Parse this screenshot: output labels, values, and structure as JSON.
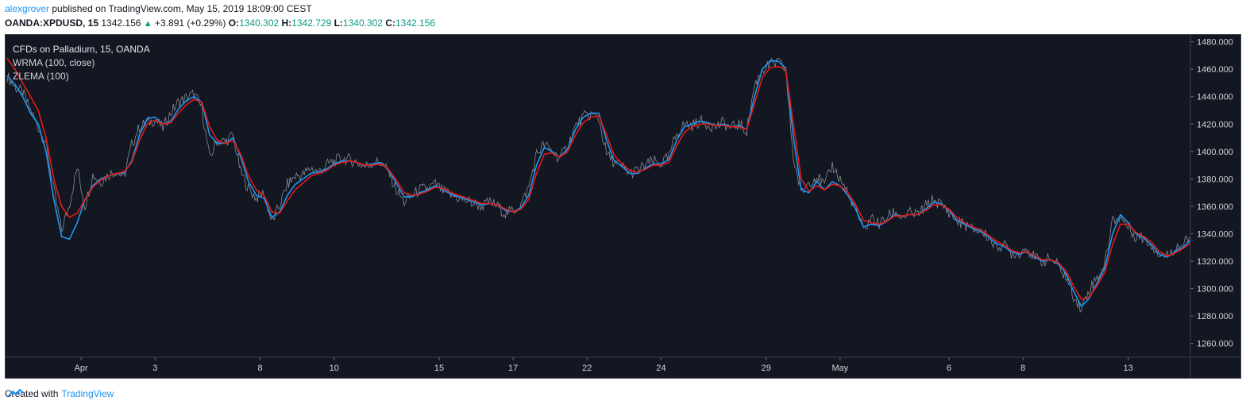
{
  "header": {
    "author": "alexgrover",
    "published_text": "published on TradingView.com, May 15, 2019 18:09:00 CEST",
    "symbol": "OANDA:XPDUSD, 15",
    "last_price": "1342.156",
    "change": "+3.891 (+0.29%)",
    "ohlc": [
      {
        "label": "O:",
        "value": "1340.302"
      },
      {
        "label": "H:",
        "value": "1342.729"
      },
      {
        "label": "L:",
        "value": "1340.302"
      },
      {
        "label": "C:",
        "value": "1342.156"
      }
    ]
  },
  "legend": {
    "symbol_line": "CFDs on Palladium, 15, OANDA",
    "indicator1": "WRMA (100, close)",
    "indicator2": "ZLEMA (100)"
  },
  "footer": {
    "created_with": "Created with",
    "brand": "TradingView"
  },
  "colors": {
    "background": "#131722",
    "price": "#9598a1",
    "wrma": "#e41b17",
    "zlema": "#2196f3",
    "grid_text": "#d1d4dc"
  },
  "chart_data": {
    "type": "line",
    "ylim": [
      1250,
      1485
    ],
    "yticks": [
      "1260.000",
      "1280.000",
      "1300.000",
      "1320.000",
      "1340.000",
      "1360.000",
      "1380.000",
      "1400.000",
      "1420.000",
      "1440.000",
      "1460.000",
      "1480.000"
    ],
    "x_tick_labels": [
      "Apr",
      "3",
      "8",
      "10",
      "15",
      "17",
      "22",
      "24",
      "29",
      "May",
      "6",
      "8",
      "13"
    ],
    "x_tick_index": [
      9.5,
      19,
      32.5,
      42,
      55.5,
      65,
      74.5,
      84,
      97.5,
      107,
      121,
      130.5,
      144
    ],
    "price": [
      1455,
      1447,
      1443,
      1430,
      1418,
      1405,
      1372,
      1342,
      1362,
      1388,
      1360,
      1383,
      1378,
      1383,
      1386,
      1381,
      1405,
      1418,
      1421,
      1423,
      1417,
      1428,
      1436,
      1439,
      1442,
      1432,
      1395,
      1408,
      1407,
      1412,
      1385,
      1373,
      1366,
      1370,
      1348,
      1361,
      1376,
      1382,
      1383,
      1388,
      1385,
      1390,
      1393,
      1395,
      1394,
      1392,
      1389,
      1392,
      1392,
      1385,
      1372,
      1363,
      1368,
      1372,
      1373,
      1376,
      1371,
      1368,
      1366,
      1364,
      1362,
      1360,
      1363,
      1360,
      1355,
      1357,
      1361,
      1374,
      1398,
      1405,
      1400,
      1395,
      1404,
      1418,
      1425,
      1427,
      1424,
      1398,
      1392,
      1389,
      1384,
      1386,
      1390,
      1393,
      1391,
      1396,
      1413,
      1420,
      1419,
      1422,
      1420,
      1418,
      1421,
      1417,
      1420,
      1415,
      1448,
      1460,
      1463,
      1465,
      1460,
      1395,
      1370,
      1378,
      1382,
      1375,
      1390,
      1380,
      1370,
      1358,
      1342,
      1352,
      1347,
      1352,
      1356,
      1352,
      1355,
      1354,
      1360,
      1365,
      1361,
      1356,
      1349,
      1347,
      1343,
      1342,
      1338,
      1331,
      1332,
      1326,
      1326,
      1330,
      1322,
      1320,
      1322,
      1317,
      1308,
      1295,
      1285,
      1300,
      1308,
      1318,
      1350,
      1352,
      1345,
      1338,
      1337,
      1332,
      1325,
      1324,
      1330,
      1332,
      1337
    ],
    "zlema": [
      1455,
      1449,
      1440,
      1428,
      1420,
      1400,
      1365,
      1338,
      1336,
      1348,
      1365,
      1375,
      1380,
      1382,
      1384,
      1384,
      1393,
      1412,
      1424,
      1425,
      1420,
      1422,
      1431,
      1437,
      1440,
      1436,
      1412,
      1406,
      1406,
      1410,
      1396,
      1378,
      1368,
      1366,
      1352,
      1356,
      1368,
      1376,
      1380,
      1384,
      1385,
      1387,
      1391,
      1393,
      1393,
      1392,
      1390,
      1391,
      1392,
      1386,
      1377,
      1367,
      1367,
      1370,
      1372,
      1375,
      1372,
      1369,
      1367,
      1365,
      1363,
      1361,
      1362,
      1361,
      1357,
      1356,
      1359,
      1368,
      1390,
      1403,
      1400,
      1396,
      1402,
      1416,
      1425,
      1428,
      1428,
      1408,
      1393,
      1389,
      1384,
      1384,
      1388,
      1391,
      1391,
      1394,
      1408,
      1418,
      1420,
      1422,
      1421,
      1419,
      1420,
      1418,
      1419,
      1416,
      1440,
      1460,
      1466,
      1466,
      1461,
      1410,
      1372,
      1370,
      1378,
      1372,
      1378,
      1375,
      1368,
      1358,
      1345,
      1347,
      1346,
      1349,
      1354,
      1353,
      1354,
      1354,
      1358,
      1363,
      1362,
      1357,
      1350,
      1347,
      1344,
      1342,
      1338,
      1333,
      1331,
      1327,
      1325,
      1327,
      1323,
      1320,
      1321,
      1318,
      1311,
      1298,
      1287,
      1293,
      1304,
      1315,
      1340,
      1354,
      1348,
      1340,
      1337,
      1332,
      1325,
      1323,
      1327,
      1330,
      1335
    ],
    "wrma": [
      1468,
      1460,
      1450,
      1440,
      1430,
      1410,
      1380,
      1360,
      1352,
      1355,
      1365,
      1374,
      1379,
      1382,
      1384,
      1385,
      1392,
      1408,
      1420,
      1423,
      1420,
      1421,
      1428,
      1434,
      1438,
      1436,
      1418,
      1408,
      1406,
      1408,
      1398,
      1382,
      1372,
      1368,
      1356,
      1355,
      1364,
      1372,
      1377,
      1382,
      1384,
      1386,
      1390,
      1392,
      1393,
      1392,
      1390,
      1390,
      1391,
      1387,
      1379,
      1370,
      1368,
      1369,
      1371,
      1374,
      1373,
      1370,
      1368,
      1366,
      1364,
      1362,
      1362,
      1361,
      1358,
      1356,
      1358,
      1365,
      1384,
      1398,
      1399,
      1396,
      1400,
      1412,
      1421,
      1425,
      1426,
      1412,
      1397,
      1391,
      1386,
      1385,
      1387,
      1390,
      1390,
      1392,
      1404,
      1414,
      1418,
      1420,
      1420,
      1419,
      1419,
      1418,
      1418,
      1416,
      1435,
      1454,
      1461,
      1462,
      1460,
      1420,
      1380,
      1371,
      1375,
      1372,
      1376,
      1375,
      1370,
      1361,
      1350,
      1348,
      1347,
      1349,
      1353,
      1353,
      1354,
      1354,
      1357,
      1361,
      1361,
      1358,
      1352,
      1348,
      1345,
      1343,
      1339,
      1335,
      1332,
      1328,
      1326,
      1327,
      1324,
      1321,
      1321,
      1319,
      1313,
      1302,
      1292,
      1294,
      1302,
      1312,
      1332,
      1347,
      1347,
      1341,
      1338,
      1334,
      1327,
      1324,
      1326,
      1329,
      1333
    ]
  }
}
